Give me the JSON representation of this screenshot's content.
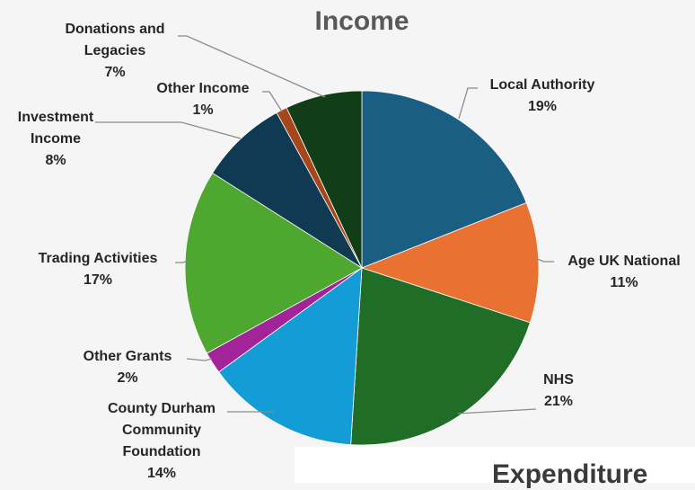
{
  "chart_data": {
    "type": "pie",
    "title": "Income",
    "slices": [
      {
        "label": [
          "Local Authority"
        ],
        "pct_label": "19%",
        "value": 19,
        "color": "#1a5e83"
      },
      {
        "label": [
          "Age UK National"
        ],
        "pct_label": "11%",
        "value": 11,
        "color": "#e97132"
      },
      {
        "label": [
          "NHS"
        ],
        "pct_label": "21%",
        "value": 21,
        "color": "#206d27"
      },
      {
        "label": [
          "County Durham",
          "Community",
          "Foundation"
        ],
        "pct_label": "14%",
        "value": 14,
        "color": "#149cd7"
      },
      {
        "label": [
          "Other Grants"
        ],
        "pct_label": "2%",
        "value": 2,
        "color": "#a12499"
      },
      {
        "label": [
          "Trading Activities"
        ],
        "pct_label": "17%",
        "value": 17,
        "color": "#4ea72e"
      },
      {
        "label": [
          "Investment",
          "Income"
        ],
        "pct_label": "8%",
        "value": 8,
        "color": "#0f3a52"
      },
      {
        "label": [
          "Other Income"
        ],
        "pct_label": "1%",
        "value": 1,
        "color": "#a5461b"
      },
      {
        "label": [
          "Donations and",
          "Legacies"
        ],
        "pct_label": "7%",
        "value": 7,
        "color": "#123e17"
      }
    ]
  },
  "next_chart": {
    "title": "Expenditure"
  }
}
